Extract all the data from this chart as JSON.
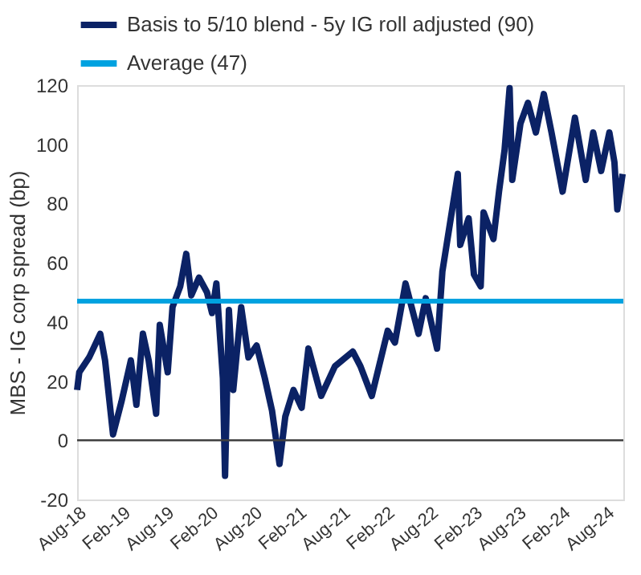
{
  "chart_data": {
    "type": "line",
    "ylabel": "MBS - IG corp spread (bp)",
    "x": [
      "2018-08-01",
      "2018-08-10",
      "2018-09-20",
      "2018-11-05",
      "2018-11-25",
      "2018-12-28",
      "2019-02-01",
      "2019-03-12",
      "2019-04-04",
      "2019-05-01",
      "2019-05-25",
      "2019-06-25",
      "2019-07-10",
      "2019-08-12",
      "2019-09-01",
      "2019-10-03",
      "2019-10-28",
      "2019-11-18",
      "2019-12-20",
      "2020-01-22",
      "2020-02-12",
      "2020-03-01",
      "2020-03-28",
      "2020-04-06",
      "2020-04-22",
      "2020-05-10",
      "2020-06-12",
      "2020-07-12",
      "2020-08-15",
      "2020-09-18",
      "2020-10-18",
      "2020-11-18",
      "2020-12-12",
      "2021-01-15",
      "2021-02-18",
      "2021-03-18",
      "2021-04-20",
      "2021-05-10",
      "2021-07-06",
      "2021-09-18",
      "2021-10-20",
      "2021-12-06",
      "2022-02-10",
      "2022-03-12",
      "2022-04-25",
      "2022-06-18",
      "2022-07-18",
      "2022-09-03",
      "2022-09-25",
      "2022-11-28",
      "2022-12-08",
      "2023-01-12",
      "2023-02-03",
      "2023-03-03",
      "2023-03-15",
      "2023-04-25",
      "2023-05-18",
      "2023-06-10",
      "2023-07-01",
      "2023-07-12",
      "2023-08-15",
      "2023-09-15",
      "2023-10-18",
      "2023-11-20",
      "2023-12-22",
      "2024-02-06",
      "2024-03-28",
      "2024-05-12",
      "2024-06-12",
      "2024-07-15",
      "2024-08-18",
      "2024-09-08",
      "2024-09-20",
      "2024-10-12"
    ],
    "series": [
      {
        "name": "Basis to 5/10 blend - 5y IG roll adjusted (90)",
        "color": "#0b2265",
        "values": [
          17,
          23,
          28,
          36,
          27,
          2,
          13,
          27,
          12,
          36,
          27,
          9,
          39,
          23,
          45,
          52,
          63,
          49,
          55,
          50,
          43,
          53,
          21,
          -12,
          44,
          17,
          45,
          28,
          32,
          21,
          10,
          -8,
          8,
          17,
          11,
          31,
          21,
          15,
          25,
          30,
          25,
          15,
          37,
          33,
          53,
          36,
          48,
          31,
          57,
          90,
          66,
          75,
          56,
          52,
          77,
          68,
          84,
          98,
          119,
          88,
          107,
          114,
          104,
          117,
          104,
          84,
          109,
          88,
          104,
          91,
          104,
          94,
          78,
          90
        ]
      }
    ],
    "ylim": [
      -20,
      120
    ],
    "yticks": [
      -20,
      0,
      20,
      40,
      60,
      80,
      100,
      120
    ],
    "xlim": [
      "2018-08-01",
      "2024-10-15"
    ],
    "xticks": [
      {
        "value": "2018-08-01",
        "label": "Aug-18"
      },
      {
        "value": "2019-02-01",
        "label": "Feb-19"
      },
      {
        "value": "2019-08-01",
        "label": "Aug-19"
      },
      {
        "value": "2020-02-01",
        "label": "Feb-20"
      },
      {
        "value": "2020-08-01",
        "label": "Aug-20"
      },
      {
        "value": "2021-02-01",
        "label": "Feb-21"
      },
      {
        "value": "2021-08-01",
        "label": "Aug-21"
      },
      {
        "value": "2022-02-01",
        "label": "Feb-22"
      },
      {
        "value": "2022-08-01",
        "label": "Aug-22"
      },
      {
        "value": "2023-02-01",
        "label": "Feb-23"
      },
      {
        "value": "2023-08-01",
        "label": "Aug-23"
      },
      {
        "value": "2024-02-01",
        "label": "Feb-24"
      },
      {
        "value": "2024-08-01",
        "label": "Aug-24"
      }
    ],
    "ref_lines": [
      {
        "axis": "y",
        "value": 47,
        "label": "Average (47)",
        "color": "#00a2e0"
      },
      {
        "axis": "y",
        "value": 0,
        "color": "#404040"
      }
    ],
    "grid": false,
    "legend": "top left",
    "marker": "none",
    "line_style": "solid"
  }
}
